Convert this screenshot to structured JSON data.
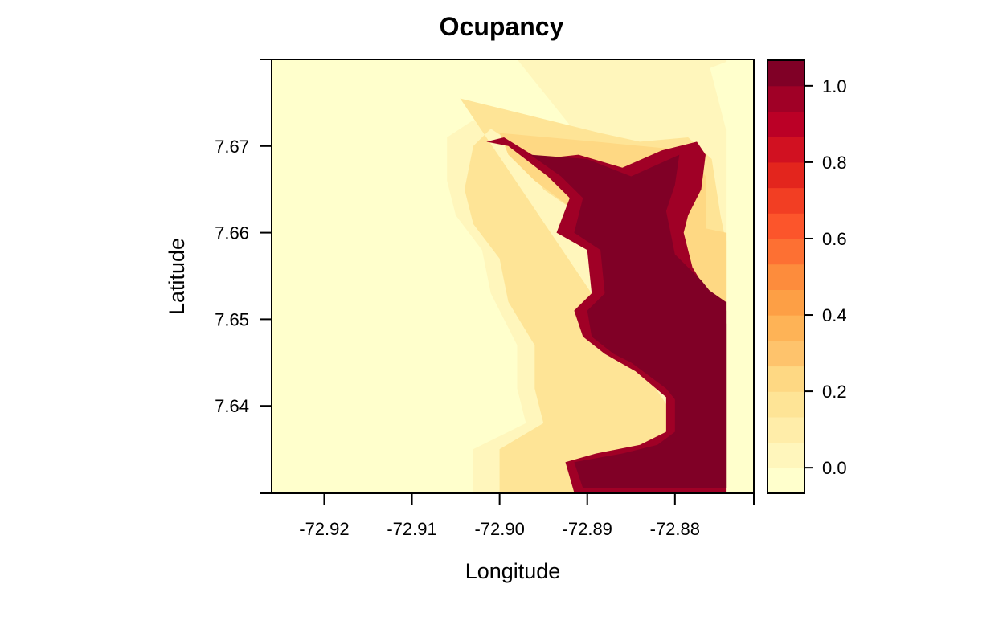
{
  "chart_data": {
    "type": "heatmap",
    "title": "Ocupancy",
    "xlabel": "Longitude",
    "ylabel": "Latitude",
    "xlim": [
      -72.926,
      -72.871
    ],
    "ylim": [
      7.63,
      7.68
    ],
    "x_ticks": [
      -72.92,
      -72.91,
      -72.9,
      -72.89,
      -72.88
    ],
    "x_tick_labels": [
      "-72.92",
      "-72.91",
      "-72.90",
      "-72.89",
      "-72.88"
    ],
    "y_ticks": [
      7.64,
      7.65,
      7.66,
      7.67
    ],
    "y_tick_labels": [
      "7.64",
      "7.65",
      "7.66",
      "7.67"
    ],
    "colorbar": {
      "range": [
        -0.067,
        1.067
      ],
      "ticks": [
        0.0,
        0.2,
        0.4,
        0.6,
        0.8,
        1.0
      ],
      "tick_labels": [
        "0.0",
        "0.2",
        "0.4",
        "0.6",
        "0.8",
        "1.0"
      ],
      "colors": [
        "#ffffcc",
        "#fff6bc",
        "#ffeda9",
        "#fee496",
        "#fed883",
        "#fec36c",
        "#feb356",
        "#fd9f45",
        "#fd8c3c",
        "#fd7033",
        "#fc552b",
        "#f23e23",
        "#e3251d",
        "#d11121",
        "#bb0026",
        "#a00026",
        "#800026"
      ]
    },
    "grid": false,
    "legend": "right",
    "region_description_note": "",
    "regions": [
      {
        "value": 0.06,
        "points": [
          [
            -72.898,
            7.68
          ],
          [
            -72.8742,
            7.68
          ],
          [
            -72.8742,
            7.6797
          ],
          [
            -72.876,
            7.679
          ],
          [
            -72.8742,
            7.672
          ],
          [
            -72.8742,
            7.65
          ],
          [
            -72.88,
            7.654
          ],
          [
            -72.885,
            7.657
          ],
          [
            -72.888,
            7.661
          ],
          [
            -72.893,
            7.664
          ],
          [
            -72.898,
            7.67
          ],
          [
            -72.901,
            7.672
          ],
          [
            -72.903,
            7.673
          ],
          [
            -72.906,
            7.671
          ],
          [
            -72.906,
            7.666
          ],
          [
            -72.905,
            7.662
          ],
          [
            -72.902,
            7.658
          ],
          [
            -72.901,
            7.653
          ],
          [
            -72.898,
            7.647
          ],
          [
            -72.898,
            7.642
          ],
          [
            -72.897,
            7.638
          ],
          [
            -72.903,
            7.635
          ],
          [
            -72.903,
            7.63
          ],
          [
            -72.8742,
            7.63
          ],
          [
            -72.8742,
            7.65
          ],
          [
            -72.8742,
            7.65
          ]
        ]
      },
      {
        "value": 0.14,
        "points": [
          [
            -72.9045,
            7.6755
          ],
          [
            -72.8885,
            7.6715
          ],
          [
            -72.884,
            7.6705
          ],
          [
            -72.8785,
            7.671
          ],
          [
            -72.8758,
            7.6685
          ],
          [
            -72.8748,
            7.662
          ],
          [
            -72.8742,
            7.659
          ],
          [
            -72.8742,
            7.651
          ],
          [
            -72.881,
            7.655
          ],
          [
            -72.886,
            7.6585
          ],
          [
            -72.89,
            7.6615
          ],
          [
            -72.895,
            7.665
          ],
          [
            -72.898,
            7.67
          ],
          [
            -72.901,
            7.672
          ],
          [
            -72.903,
            7.67
          ],
          [
            -72.904,
            7.665
          ],
          [
            -72.903,
            7.661
          ],
          [
            -72.9,
            7.657
          ],
          [
            -72.899,
            7.652
          ],
          [
            -72.896,
            7.647
          ],
          [
            -72.896,
            7.642
          ],
          [
            -72.895,
            7.638
          ],
          [
            -72.9,
            7.635
          ],
          [
            -72.9,
            7.63
          ],
          [
            -72.8742,
            7.63
          ]
        ]
      },
      {
        "value": 0.25,
        "points": [
          [
            -72.9,
            7.6715
          ],
          [
            -72.889,
            7.6705
          ],
          [
            -72.8785,
            7.6695
          ],
          [
            -72.8765,
            7.6665
          ],
          [
            -72.8765,
            7.6605
          ],
          [
            -72.8742,
            7.66
          ],
          [
            -72.8742,
            7.651
          ],
          [
            -72.876,
            7.65
          ],
          [
            -72.879,
            7.653
          ],
          [
            -72.884,
            7.656
          ],
          [
            -72.888,
            7.659
          ],
          [
            -72.892,
            7.663
          ],
          [
            -72.896,
            7.666
          ],
          [
            -72.899,
            7.669
          ]
        ]
      },
      {
        "value": 0.95,
        "points": [
          [
            -72.9015,
            7.6705
          ],
          [
            -72.8995,
            7.671
          ],
          [
            -72.8955,
            7.6685
          ],
          [
            -72.891,
            7.669
          ],
          [
            -72.886,
            7.6675
          ],
          [
            -72.8815,
            7.6695
          ],
          [
            -72.8775,
            7.6705
          ],
          [
            -72.8765,
            7.669
          ],
          [
            -72.877,
            7.665
          ],
          [
            -72.8785,
            7.662
          ],
          [
            -72.879,
            7.66
          ],
          [
            -72.878,
            7.656
          ],
          [
            -72.875,
            7.651
          ],
          [
            -72.8742,
            7.6495
          ],
          [
            -72.8742,
            7.63
          ],
          [
            -72.8915,
            7.63
          ],
          [
            -72.8925,
            7.6335
          ],
          [
            -72.889,
            7.6345
          ],
          [
            -72.884,
            7.6355
          ],
          [
            -72.881,
            7.637
          ],
          [
            -72.881,
            7.641
          ],
          [
            -72.8845,
            7.644
          ],
          [
            -72.888,
            7.646
          ],
          [
            -72.8905,
            7.648
          ],
          [
            -72.8915,
            7.651
          ],
          [
            -72.8895,
            7.653
          ],
          [
            -72.89,
            7.658
          ],
          [
            -72.8935,
            7.66
          ],
          [
            -72.892,
            7.664
          ],
          [
            -72.8945,
            7.6665
          ],
          [
            -72.899,
            7.67
          ]
        ]
      },
      {
        "value": 1.03,
        "points": [
          [
            -72.8965,
            7.669
          ],
          [
            -72.89,
            7.6685
          ],
          [
            -72.885,
            7.6665
          ],
          [
            -72.8795,
            7.669
          ],
          [
            -72.88,
            7.6655
          ],
          [
            -72.881,
            7.6625
          ],
          [
            -72.8805,
            7.66
          ],
          [
            -72.88,
            7.6575
          ],
          [
            -72.877,
            7.6545
          ],
          [
            -72.8742,
            7.651
          ],
          [
            -72.8742,
            7.6305
          ],
          [
            -72.8905,
            7.6305
          ],
          [
            -72.8915,
            7.6335
          ],
          [
            -72.886,
            7.6345
          ],
          [
            -72.882,
            7.6355
          ],
          [
            -72.88,
            7.637
          ],
          [
            -72.88,
            7.641
          ],
          [
            -72.883,
            7.644
          ],
          [
            -72.887,
            7.646
          ],
          [
            -72.8895,
            7.648
          ],
          [
            -72.89,
            7.651
          ],
          [
            -72.888,
            7.653
          ],
          [
            -72.8885,
            7.658
          ],
          [
            -72.8915,
            7.66
          ],
          [
            -72.8905,
            7.664
          ],
          [
            -72.893,
            7.6665
          ]
        ]
      },
      {
        "value": 1.067,
        "points": [
          [
            -72.89,
            7.663
          ],
          [
            -72.8865,
            7.6635
          ],
          [
            -72.881,
            7.664
          ],
          [
            -72.881,
            7.66
          ],
          [
            -72.88,
            7.656
          ],
          [
            -72.877,
            7.654
          ],
          [
            -72.8742,
            7.652
          ],
          [
            -72.8742,
            7.6305
          ],
          [
            -72.89,
            7.6305
          ],
          [
            -72.886,
            7.6335
          ],
          [
            -72.882,
            7.6345
          ],
          [
            -72.88,
            7.636
          ],
          [
            -72.879,
            7.6395
          ],
          [
            -72.881,
            7.642
          ],
          [
            -72.885,
            7.645
          ],
          [
            -72.8875,
            7.648
          ],
          [
            -72.888,
            7.653
          ],
          [
            -72.8875,
            7.658
          ],
          [
            -72.8885,
            7.661
          ]
        ]
      }
    ]
  }
}
